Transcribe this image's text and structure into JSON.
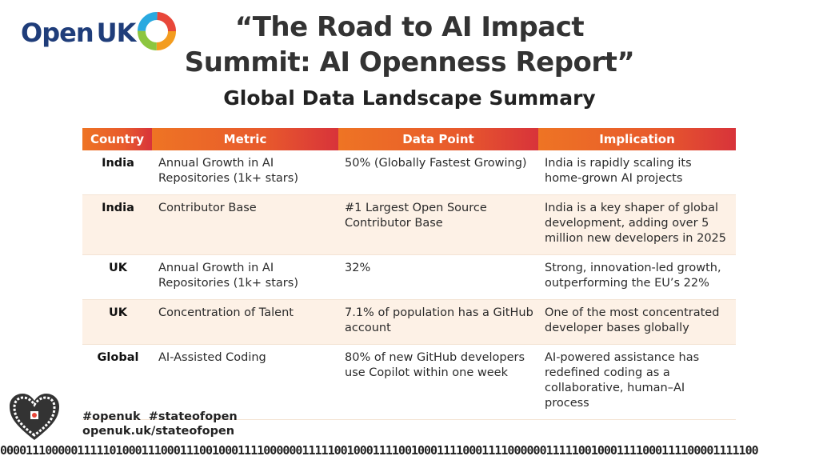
{
  "logo": {
    "text": "Open",
    "accent": "UK"
  },
  "header": {
    "title_line1": "“The Road to AI Impact",
    "title_line2": "Summit: AI Openness Report”",
    "subtitle": "Global Data Landscape Summary"
  },
  "table": {
    "columns": [
      "Country",
      "Metric",
      "Data Point",
      "Implication"
    ],
    "rows": [
      [
        "India",
        "Annual Growth in AI Repositories (1k+ stars)",
        "50% (Globally Fastest Growing)",
        "India is rapidly scaling its home-grown AI projects"
      ],
      [
        "India",
        "Contributor Base",
        "#1 Largest Open Source Contributor Base",
        "India is a key shaper of global development, adding over 5 million new developers in 2025"
      ],
      [
        "UK",
        "Annual Growth in AI Repositories (1k+ stars)",
        "32%",
        "Strong, innovation-led growth, outperforming the EU’s 22%"
      ],
      [
        "UK",
        "Concentration of Talent",
        "7.1% of population has a GitHub account",
        "One of the most concentrated developer bases globally"
      ],
      [
        "Global",
        "AI-Assisted Coding",
        "80% of new GitHub developers use Copilot within one week",
        "AI-powered assistance has redefined coding as a collaborative, human–AI process"
      ]
    ]
  },
  "footer": {
    "hashtags": "#openuk  #stateofopen",
    "url": "openuk.uk/stateofopen",
    "binary": "0000111000001111101000111000111001000111100000011111001000111100100011110001111000000111110010001111000111100001111100"
  }
}
